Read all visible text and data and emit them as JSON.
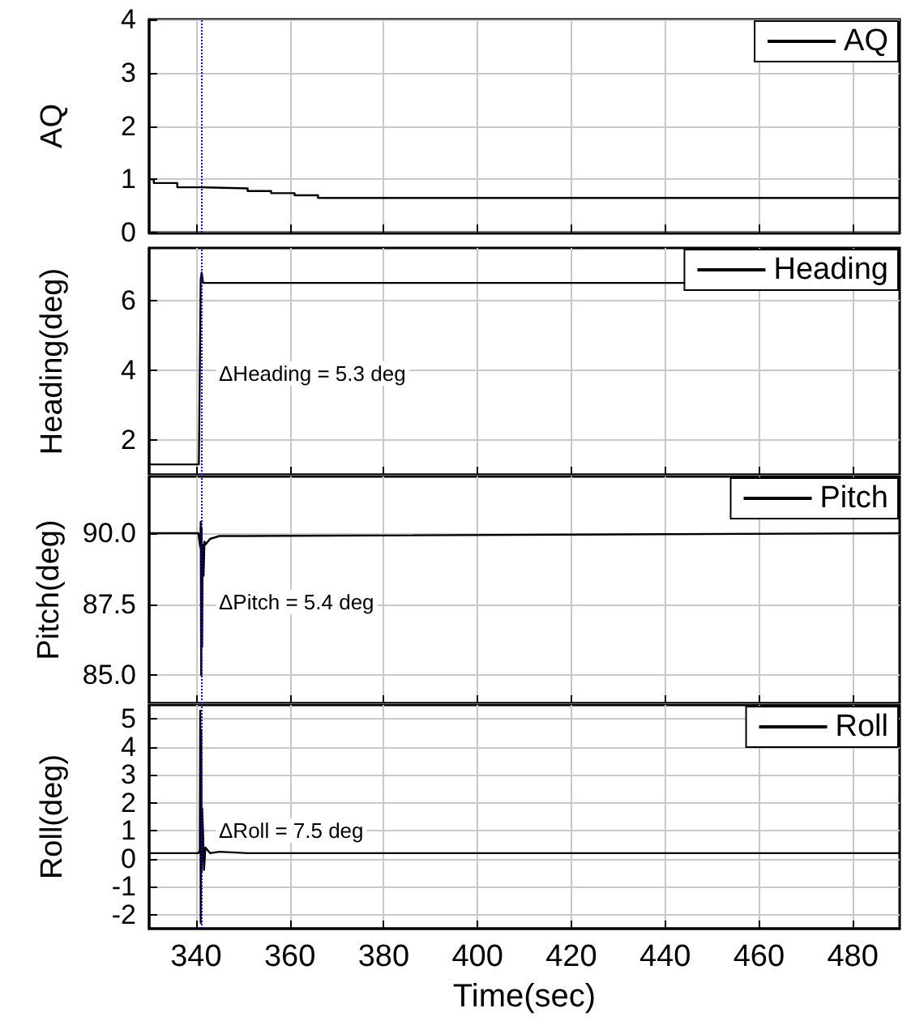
{
  "chart_data": [
    {
      "type": "step",
      "ylabel": "AQ",
      "xlim": [
        330,
        490
      ],
      "xticks": [
        340,
        360,
        380,
        400,
        420,
        440,
        460,
        480
      ],
      "ylim": [
        0,
        4
      ],
      "yticks": [
        0,
        1,
        2,
        3,
        4
      ],
      "tick_labels": "y",
      "grid": true,
      "legend": "top right",
      "marker": "none",
      "line_style": "solid",
      "ref_lines": [
        {
          "axis": "x",
          "value": 341,
          "color": "#0000ff",
          "line_style": "dotted"
        }
      ],
      "series": [
        {
          "name": "AQ",
          "color": "#000000",
          "x": [
            330,
            331,
            336,
            341,
            351,
            356,
            361,
            366,
            490
          ],
          "values": [
            1.0,
            0.93,
            0.85,
            0.83,
            0.78,
            0.74,
            0.7,
            0.65,
            0.65
          ]
        }
      ]
    },
    {
      "type": "line",
      "ylabel": "Heading(deg)",
      "xlim": [
        330,
        490
      ],
      "xticks": [
        340,
        360,
        380,
        400,
        420,
        440,
        460,
        480
      ],
      "ylim": [
        1,
        7.5
      ],
      "yticks": [
        2,
        4,
        6
      ],
      "tick_labels": "y",
      "grid": true,
      "legend": "top right",
      "marker": "none",
      "line_style": "solid",
      "annotations": [
        "ΔHeading = 5.3 deg"
      ],
      "ref_lines": [
        {
          "axis": "x",
          "value": 341,
          "color": "#0000ff",
          "line_style": "dotted"
        }
      ],
      "series": [
        {
          "name": "Heading",
          "color": "#000000",
          "x": [
            330,
            340.6,
            341,
            341.2,
            341.5,
            490
          ],
          "values": [
            1.3,
            1.3,
            6.6,
            6.8,
            6.5,
            6.5
          ]
        }
      ]
    },
    {
      "type": "line",
      "ylabel": "Pitch(deg)",
      "xlim": [
        330,
        490
      ],
      "xticks": [
        340,
        360,
        380,
        400,
        420,
        440,
        460,
        480
      ],
      "ylim": [
        84,
        92
      ],
      "yticks": [
        {
          "value": 85,
          "label": "85.0"
        },
        87.5,
        {
          "value": 90,
          "label": "90.0"
        }
      ],
      "tick_labels": "y",
      "grid": true,
      "legend": "top right",
      "marker": "none",
      "line_style": "solid",
      "annotations": [
        "ΔPitch = 5.4 deg"
      ],
      "ref_lines": [
        {
          "axis": "x",
          "value": 341,
          "color": "#0000ff",
          "line_style": "dotted"
        }
      ],
      "series": [
        {
          "name": "Pitch",
          "color": "#000000",
          "x": [
            330,
            340.5,
            340.9,
            341.0,
            341.1,
            341.2,
            341.3,
            341.4,
            341.6,
            341.8,
            342,
            343,
            345,
            350,
            490
          ],
          "values": [
            90.0,
            90.0,
            89.5,
            90.4,
            85.0,
            90.2,
            86.0,
            89.6,
            88.5,
            89.7,
            89.6,
            89.8,
            89.9,
            89.9,
            90.0
          ]
        }
      ]
    },
    {
      "type": "line",
      "xlabel": "Time(sec)",
      "ylabel": "Roll(deg)",
      "xlim": [
        330,
        490
      ],
      "xticks": [
        340,
        360,
        380,
        400,
        420,
        440,
        460,
        480
      ],
      "ylim": [
        -2.5,
        5.5
      ],
      "yticks": [
        -2,
        -1,
        0,
        1,
        2,
        3,
        4,
        5
      ],
      "grid": true,
      "legend": "top right",
      "marker": "none",
      "line_style": "solid",
      "annotations": [
        "ΔRoll = 7.5 deg"
      ],
      "ref_lines": [
        {
          "axis": "x",
          "value": 341,
          "color": "#0000ff",
          "line_style": "dotted"
        }
      ],
      "series": [
        {
          "name": "Roll",
          "color": "#000000",
          "x": [
            330,
            340.5,
            340.8,
            340.9,
            341.0,
            341.1,
            341.2,
            341.3,
            341.5,
            341.7,
            342,
            343,
            345,
            351,
            490
          ],
          "values": [
            0.2,
            0.2,
            0.3,
            5.3,
            -2.3,
            4.6,
            -0.5,
            1.8,
            0.9,
            -0.4,
            0.4,
            0.2,
            0.25,
            0.2,
            0.2
          ]
        }
      ]
    }
  ]
}
